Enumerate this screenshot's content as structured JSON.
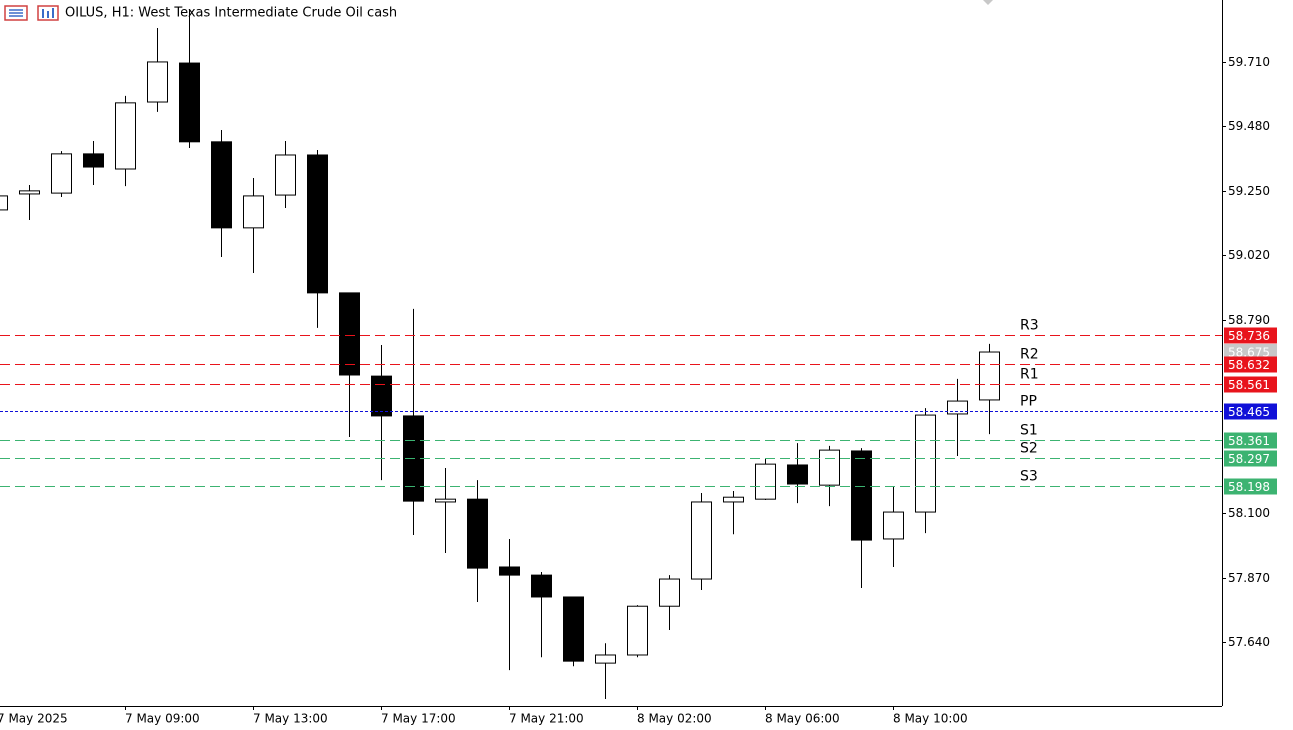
{
  "chart_data": {
    "type": "candlestick",
    "title": "OILUS, H1:  West Texas Intermediate Crude Oil cash",
    "categories": [
      "7 May 2025",
      null,
      null,
      null,
      "7 May 09:00",
      null,
      null,
      null,
      "7 May 13:00",
      null,
      null,
      null,
      "7 May 17:00",
      null,
      null,
      null,
      "7 May 21:00",
      null,
      null,
      null,
      "8 May 02:00",
      null,
      null,
      null,
      "8 May 06:00",
      null,
      null,
      null,
      "8 May 10:00",
      null,
      null,
      null
    ],
    "open": [
      59.182,
      59.239,
      59.242,
      59.382,
      59.328,
      59.567,
      59.706,
      59.425,
      59.118,
      59.235,
      59.378,
      58.886,
      58.589,
      58.447,
      58.14,
      58.15,
      57.908,
      57.879,
      57.801,
      57.565,
      57.594,
      57.768,
      57.865,
      58.14,
      58.15,
      58.272,
      58.2,
      58.322,
      58.008,
      58.104,
      58.454,
      58.504
    ],
    "high": [
      59.24,
      59.271,
      59.392,
      59.428,
      59.589,
      59.831,
      59.896,
      59.467,
      59.296,
      59.428,
      59.396,
      58.886,
      58.7,
      58.829,
      58.261,
      58.218,
      58.008,
      57.89,
      57.801,
      57.636,
      57.772,
      57.879,
      58.172,
      58.179,
      58.297,
      58.35,
      58.34,
      58.332,
      58.197,
      58.475,
      58.579,
      58.704
    ],
    "low": [
      59.175,
      59.146,
      59.228,
      59.271,
      59.267,
      59.532,
      59.403,
      59.014,
      58.957,
      59.189,
      58.761,
      58.372,
      58.218,
      58.022,
      57.958,
      57.783,
      57.54,
      57.586,
      57.554,
      57.437,
      57.586,
      57.683,
      57.826,
      58.025,
      58.147,
      58.136,
      58.125,
      57.833,
      57.908,
      58.029,
      58.304,
      58.382
    ],
    "close": [
      59.232,
      59.25,
      59.382,
      59.335,
      59.564,
      59.71,
      59.425,
      59.118,
      59.232,
      59.378,
      58.886,
      58.593,
      58.447,
      58.143,
      58.15,
      57.904,
      57.879,
      57.801,
      57.572,
      57.594,
      57.768,
      57.865,
      58.14,
      58.157,
      58.275,
      58.204,
      58.325,
      58.004,
      58.104,
      58.45,
      58.5,
      58.675
    ],
    "up_color": "#ffffff",
    "down_color": "#000000",
    "ylim": [
      57.412,
      59.931
    ],
    "yticks": [
      {
        "value": 57.64,
        "label": "57.640"
      },
      {
        "value": 57.87,
        "label": "57.870"
      },
      {
        "value": 58.1,
        "label": "58.100"
      },
      {
        "value": 58.79,
        "label": "58.790"
      },
      {
        "value": 59.02,
        "label": "59.020"
      },
      {
        "value": 59.25,
        "label": "59.250"
      },
      {
        "value": 59.48,
        "label": "59.480"
      },
      {
        "value": 59.71,
        "label": "59.710"
      }
    ],
    "last_price": 58.675,
    "last_price_color": "#c8c8c8",
    "levels": [
      {
        "name": "R3",
        "value": 58.736,
        "color": "#e8141c"
      },
      {
        "name": "R2",
        "value": 58.632,
        "color": "#e8141c"
      },
      {
        "name": "R1",
        "value": 58.561,
        "color": "#e8141c"
      },
      {
        "name": "PP",
        "value": 58.465,
        "color": "#1010d8"
      },
      {
        "name": "S1",
        "value": 58.361,
        "color": "#3cb371"
      },
      {
        "name": "S2",
        "value": 58.297,
        "color": "#3cb371"
      },
      {
        "name": "S3",
        "value": 58.198,
        "color": "#3cb371"
      }
    ]
  }
}
